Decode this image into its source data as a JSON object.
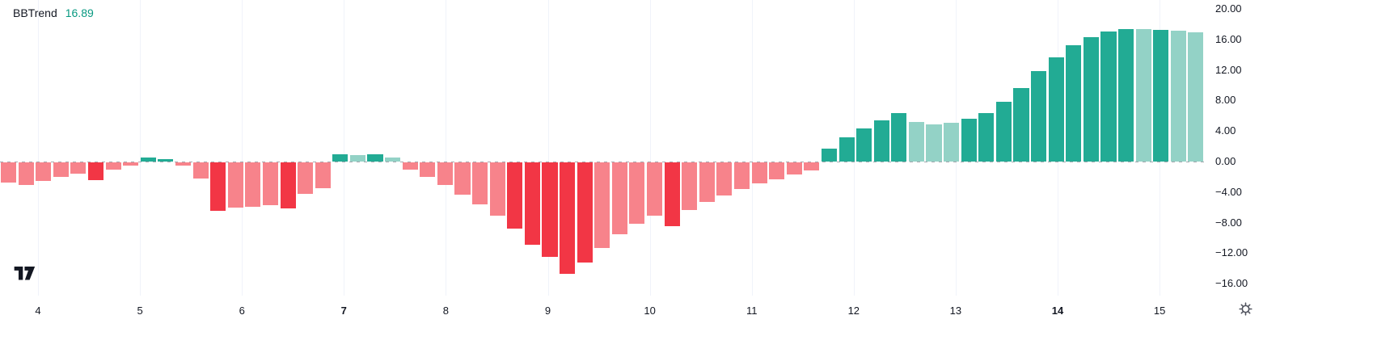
{
  "legend": {
    "indicator_name": "BBTrend",
    "value": "16.89",
    "value_color": "#089981"
  },
  "colors": {
    "r": "#f23645",
    "lr": "#f7838b",
    "g": "#22ab94",
    "lg": "#93d2c6",
    "grid": "#f0f3fa",
    "axis_text": "#131722",
    "zero_line": "#9598a1"
  },
  "icons": {
    "settings": "gear-icon",
    "logo": "tradingview-logo"
  },
  "chart_data": {
    "type": "bar",
    "title": "BBTrend",
    "current_value": 16.89,
    "ylim": [
      -16,
      20
    ],
    "grid": "vertical-only",
    "zero_line": "dashed",
    "legend_position": "top-left",
    "y_ticks": [
      {
        "label": "20.00",
        "value": 20
      },
      {
        "label": "16.00",
        "value": 16
      },
      {
        "label": "12.00",
        "value": 12
      },
      {
        "label": "8.00",
        "value": 8
      },
      {
        "label": "4.00",
        "value": 4
      },
      {
        "label": "0.00",
        "value": 0
      },
      {
        "label": "−4.00",
        "value": -4
      },
      {
        "label": "−8.00",
        "value": -8
      },
      {
        "label": "−12.00",
        "value": -12
      },
      {
        "label": "−16.00",
        "value": -16
      }
    ],
    "x_ticks": [
      {
        "label": "4",
        "bold": false
      },
      {
        "label": "5",
        "bold": false
      },
      {
        "label": "6",
        "bold": false
      },
      {
        "label": "7",
        "bold": true
      },
      {
        "label": "8",
        "bold": false
      },
      {
        "label": "9",
        "bold": false
      },
      {
        "label": "10",
        "bold": false
      },
      {
        "label": "11",
        "bold": false
      },
      {
        "label": "12",
        "bold": false
      },
      {
        "label": "13",
        "bold": false
      },
      {
        "label": "14",
        "bold": true
      },
      {
        "label": "15",
        "bold": false
      }
    ],
    "bars": [
      {
        "v": -2.6,
        "c": "lr"
      },
      {
        "v": -3.0,
        "c": "lr"
      },
      {
        "v": -2.4,
        "c": "lr"
      },
      {
        "v": -1.9,
        "c": "lr"
      },
      {
        "v": -1.5,
        "c": "lr"
      },
      {
        "v": -2.3,
        "c": "r"
      },
      {
        "v": -1.0,
        "c": "lr"
      },
      {
        "v": -0.4,
        "c": "lr"
      },
      {
        "v": 0.5,
        "c": "g"
      },
      {
        "v": 0.3,
        "c": "g"
      },
      {
        "v": -0.4,
        "c": "lr"
      },
      {
        "v": -2.1,
        "c": "lr"
      },
      {
        "v": -6.4,
        "c": "r"
      },
      {
        "v": -5.9,
        "c": "lr"
      },
      {
        "v": -5.8,
        "c": "lr"
      },
      {
        "v": -5.6,
        "c": "lr"
      },
      {
        "v": -6.0,
        "c": "r"
      },
      {
        "v": -4.1,
        "c": "lr"
      },
      {
        "v": -3.4,
        "c": "lr"
      },
      {
        "v": 0.9,
        "c": "g"
      },
      {
        "v": 0.8,
        "c": "lg"
      },
      {
        "v": 1.0,
        "c": "g"
      },
      {
        "v": 0.5,
        "c": "lg"
      },
      {
        "v": -0.9,
        "c": "lr"
      },
      {
        "v": -1.9,
        "c": "lr"
      },
      {
        "v": -3.0,
        "c": "lr"
      },
      {
        "v": -4.2,
        "c": "lr"
      },
      {
        "v": -5.5,
        "c": "lr"
      },
      {
        "v": -7.0,
        "c": "lr"
      },
      {
        "v": -8.7,
        "c": "r"
      },
      {
        "v": -10.8,
        "c": "r"
      },
      {
        "v": -12.4,
        "c": "r"
      },
      {
        "v": -14.6,
        "c": "r"
      },
      {
        "v": -13.1,
        "c": "r"
      },
      {
        "v": -11.2,
        "c": "lr"
      },
      {
        "v": -9.4,
        "c": "lr"
      },
      {
        "v": -8.0,
        "c": "lr"
      },
      {
        "v": -7.0,
        "c": "lr"
      },
      {
        "v": -8.4,
        "c": "r"
      },
      {
        "v": -6.2,
        "c": "lr"
      },
      {
        "v": -5.2,
        "c": "lr"
      },
      {
        "v": -4.3,
        "c": "lr"
      },
      {
        "v": -3.5,
        "c": "lr"
      },
      {
        "v": -2.8,
        "c": "lr"
      },
      {
        "v": -2.2,
        "c": "lr"
      },
      {
        "v": -1.6,
        "c": "lr"
      },
      {
        "v": -1.1,
        "c": "lr"
      },
      {
        "v": 1.7,
        "c": "g"
      },
      {
        "v": 3.2,
        "c": "g"
      },
      {
        "v": 4.3,
        "c": "g"
      },
      {
        "v": 5.4,
        "c": "g"
      },
      {
        "v": 6.4,
        "c": "g"
      },
      {
        "v": 5.2,
        "c": "lg"
      },
      {
        "v": 4.9,
        "c": "lg"
      },
      {
        "v": 5.1,
        "c": "lg"
      },
      {
        "v": 5.6,
        "c": "g"
      },
      {
        "v": 6.4,
        "c": "g"
      },
      {
        "v": 7.8,
        "c": "g"
      },
      {
        "v": 9.6,
        "c": "g"
      },
      {
        "v": 11.9,
        "c": "g"
      },
      {
        "v": 13.6,
        "c": "g"
      },
      {
        "v": 15.2,
        "c": "g"
      },
      {
        "v": 16.3,
        "c": "g"
      },
      {
        "v": 17.0,
        "c": "g"
      },
      {
        "v": 17.4,
        "c": "g"
      },
      {
        "v": 17.4,
        "c": "lg"
      },
      {
        "v": 17.3,
        "c": "g"
      },
      {
        "v": 17.1,
        "c": "lg"
      },
      {
        "v": 16.89,
        "c": "lg"
      }
    ]
  }
}
